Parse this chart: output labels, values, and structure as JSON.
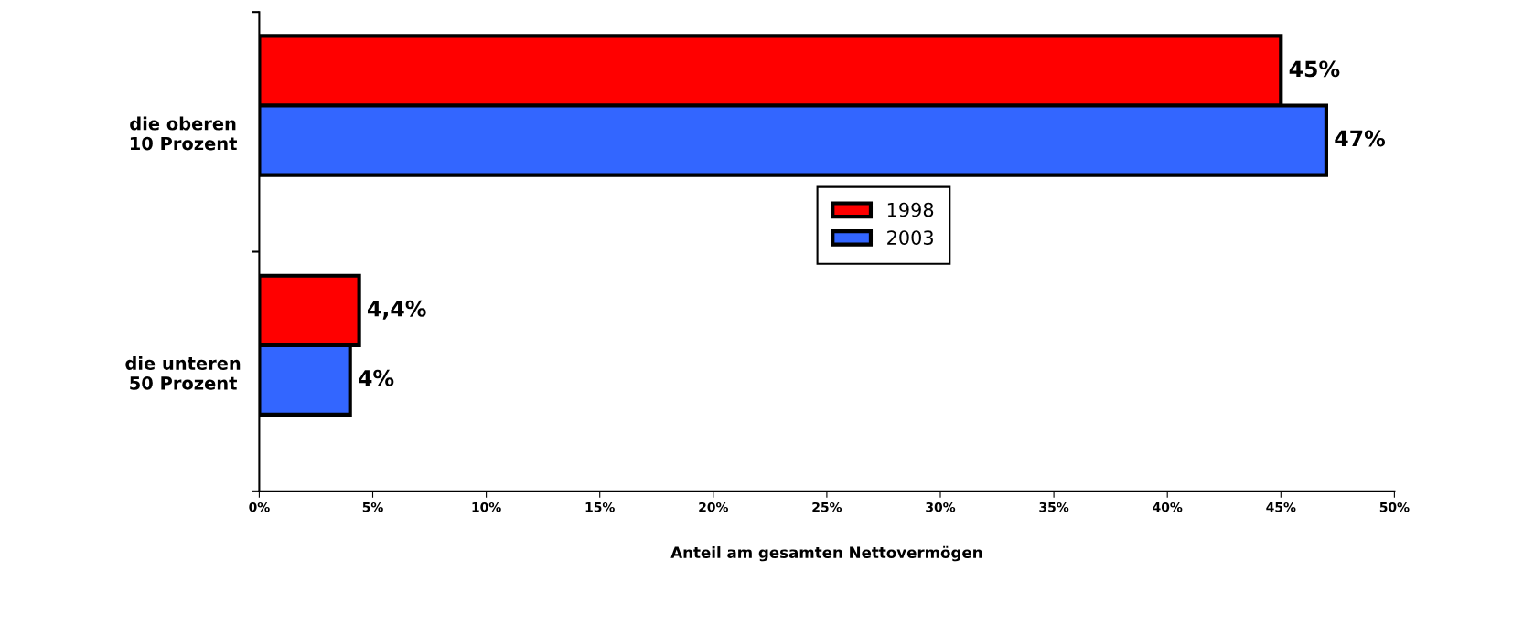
{
  "chart_data": {
    "type": "bar",
    "orientation": "horizontal",
    "xlabel": "Anteil am gesamten Nettovermögen",
    "categories": [
      "die oberen\n10 Prozent",
      "die unteren\n50 Prozent"
    ],
    "series": [
      {
        "name": "1998",
        "color": "#ff0000",
        "values": [
          45,
          4.4
        ],
        "value_labels": [
          "45%",
          "4,4%"
        ]
      },
      {
        "name": "2003",
        "color": "#3366ff",
        "values": [
          47,
          4
        ],
        "value_labels": [
          "47%",
          "4%"
        ]
      }
    ],
    "xlim": [
      0,
      50
    ],
    "xticks": [
      {
        "value": 0,
        "label": "0%"
      },
      {
        "value": 5,
        "label": "5%"
      },
      {
        "value": 10,
        "label": "10%"
      },
      {
        "value": 15,
        "label": "15%"
      },
      {
        "value": 20,
        "label": "20%"
      },
      {
        "value": 25,
        "label": "25%"
      },
      {
        "value": 30,
        "label": "30%"
      },
      {
        "value": 35,
        "label": "35%"
      },
      {
        "value": 40,
        "label": "40%"
      },
      {
        "value": 45,
        "label": "45%"
      },
      {
        "value": 50,
        "label": "50%"
      }
    ],
    "grid": false,
    "legend": "center"
  }
}
